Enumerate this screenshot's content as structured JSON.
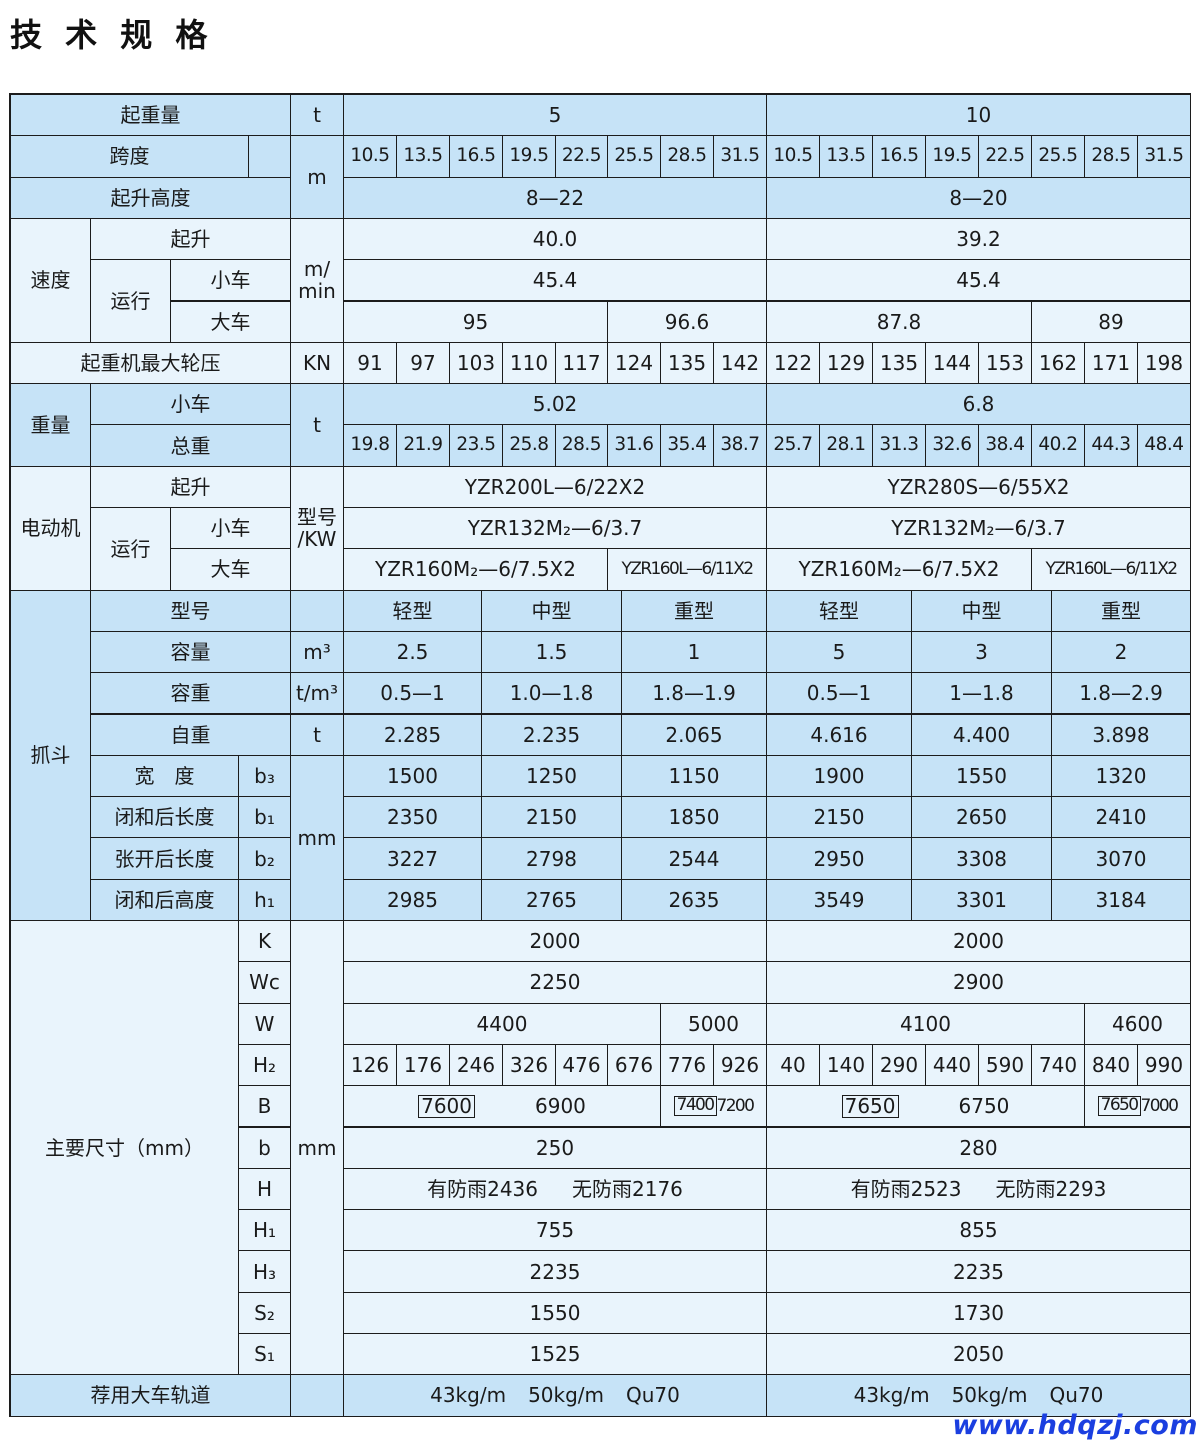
{
  "title": "技 术 规 格",
  "watermark": "www.hdqzj.com",
  "colors": {
    "row_blue": "#c6e3f7",
    "row_light": "#e9f4fc",
    "watermark": "#1b3fe0"
  },
  "labels": {
    "capacity": "起重量",
    "span": "跨度",
    "lift_height": "起升高度",
    "speed": "速度",
    "hoist": "起升",
    "travel": "运行",
    "trolley": "小车",
    "crane": "大车",
    "wheel_load": "起重机最大轮压",
    "weight": "重量",
    "total": "总重",
    "motor": "电动机",
    "grab": "抓斗",
    "model": "型号",
    "capacity_vol": "容量",
    "density": "容重",
    "self_weight": "自重",
    "width": "宽　度",
    "closed_length": "闭和后长度",
    "open_length": "张开后长度",
    "closed_height": "闭和后高度",
    "dims": "主要尺寸（mm）",
    "rail": "荐用大车轨道"
  },
  "units": {
    "t": "t",
    "m": "m",
    "m_min": "m/\nmin",
    "kn": "KN",
    "model_kw": "型号\n/KW",
    "m3": "m³",
    "t_m3": "t/m³",
    "mm": "mm"
  },
  "symbols": {
    "b3": "b₃",
    "b1": "b₁",
    "b2": "b₂",
    "h1": "h₁",
    "K": "K",
    "Wc": "Wc",
    "W": "W",
    "H2": "H₂",
    "B": "B",
    "b": "b",
    "H": "H",
    "H1": "H₁",
    "H3": "H₃",
    "S2": "S₂",
    "S1": "S₁"
  },
  "specs": {
    "t5": {
      "capacity": "5",
      "spans": [
        "10.5",
        "13.5",
        "16.5",
        "19.5",
        "22.5",
        "25.5",
        "28.5",
        "31.5"
      ],
      "lift_height": "8—22",
      "hoist_speed": "40.0",
      "trolley_speed": "45.4",
      "crane_speed": [
        "95",
        "96.6"
      ],
      "wheel_load": [
        "91",
        "97",
        "103",
        "110",
        "117",
        "124",
        "135",
        "142"
      ],
      "trolley_weight": "5.02",
      "total_weight": [
        "19.8",
        "21.9",
        "23.5",
        "25.8",
        "28.5",
        "31.6",
        "35.4",
        "38.7"
      ],
      "motor_hoist": "YZR200L—6/22X2",
      "motor_trolley": "YZR132M₂—6/3.7",
      "motor_crane": [
        "YZR160M₂—6/7.5X2",
        "YZR160L—6/11X2"
      ],
      "grab_types": [
        "轻型",
        "中型",
        "重型"
      ],
      "grab_capacity": [
        "2.5",
        "1.5",
        "1"
      ],
      "grab_density": [
        "0.5—1",
        "1.0—1.8",
        "1.8—1.9"
      ],
      "grab_self_weight": [
        "2.285",
        "2.235",
        "2.065"
      ],
      "b3": [
        "1500",
        "1250",
        "1150"
      ],
      "b1": [
        "2350",
        "2150",
        "1850"
      ],
      "b2": [
        "3227",
        "2798",
        "2544"
      ],
      "h1": [
        "2985",
        "2765",
        "2635"
      ],
      "K": "2000",
      "Wc": "2250",
      "W": [
        "4400",
        "5000"
      ],
      "H2": [
        "126",
        "176",
        "246",
        "326",
        "476",
        "676",
        "776",
        "926"
      ],
      "B": {
        "boxed": [
          "7600",
          "7400"
        ],
        "plain": [
          "6900",
          "7200"
        ]
      },
      "b": "250",
      "H": [
        "有防雨2436",
        "无防雨2176"
      ],
      "H1": "755",
      "H3": "2235",
      "S2": "1550",
      "S1": "1525",
      "rail": [
        "43kg/m",
        "50kg/m",
        "Qu70"
      ]
    },
    "t10": {
      "capacity": "10",
      "spans": [
        "10.5",
        "13.5",
        "16.5",
        "19.5",
        "22.5",
        "25.5",
        "28.5",
        "31.5"
      ],
      "lift_height": "8—20",
      "hoist_speed": "39.2",
      "trolley_speed": "45.4",
      "crane_speed": [
        "87.8",
        "89"
      ],
      "wheel_load": [
        "122",
        "129",
        "135",
        "144",
        "153",
        "162",
        "171",
        "198"
      ],
      "trolley_weight": "6.8",
      "total_weight": [
        "25.7",
        "28.1",
        "31.3",
        "32.6",
        "38.4",
        "40.2",
        "44.3",
        "48.4"
      ],
      "motor_hoist": "YZR280S—6/55X2",
      "motor_trolley": "YZR132M₂—6/3.7",
      "motor_crane": [
        "YZR160M₂—6/7.5X2",
        "YZR160L—6/11X2"
      ],
      "grab_types": [
        "轻型",
        "中型",
        "重型"
      ],
      "grab_capacity": [
        "5",
        "3",
        "2"
      ],
      "grab_density": [
        "0.5—1",
        "1—1.8",
        "1.8—2.9"
      ],
      "grab_self_weight": [
        "4.616",
        "4.400",
        "3.898"
      ],
      "b3": [
        "1900",
        "1550",
        "1320"
      ],
      "b1": [
        "2150",
        "2650",
        "2410"
      ],
      "b2": [
        "2950",
        "3308",
        "3070"
      ],
      "h1": [
        "3549",
        "3301",
        "3184"
      ],
      "K": "2000",
      "Wc": "2900",
      "W": [
        "4100",
        "4600"
      ],
      "H2": [
        "40",
        "140",
        "290",
        "440",
        "590",
        "740",
        "840",
        "990"
      ],
      "B": {
        "boxed": [
          "7650",
          "7650"
        ],
        "plain": [
          "6750",
          "7000"
        ]
      },
      "b": "280",
      "H": [
        "有防雨2523",
        "无防雨2293"
      ],
      "H1": "855",
      "H3": "2235",
      "S2": "1730",
      "S1": "2050",
      "rail": [
        "43kg/m",
        "50kg/m",
        "Qu70"
      ]
    }
  }
}
